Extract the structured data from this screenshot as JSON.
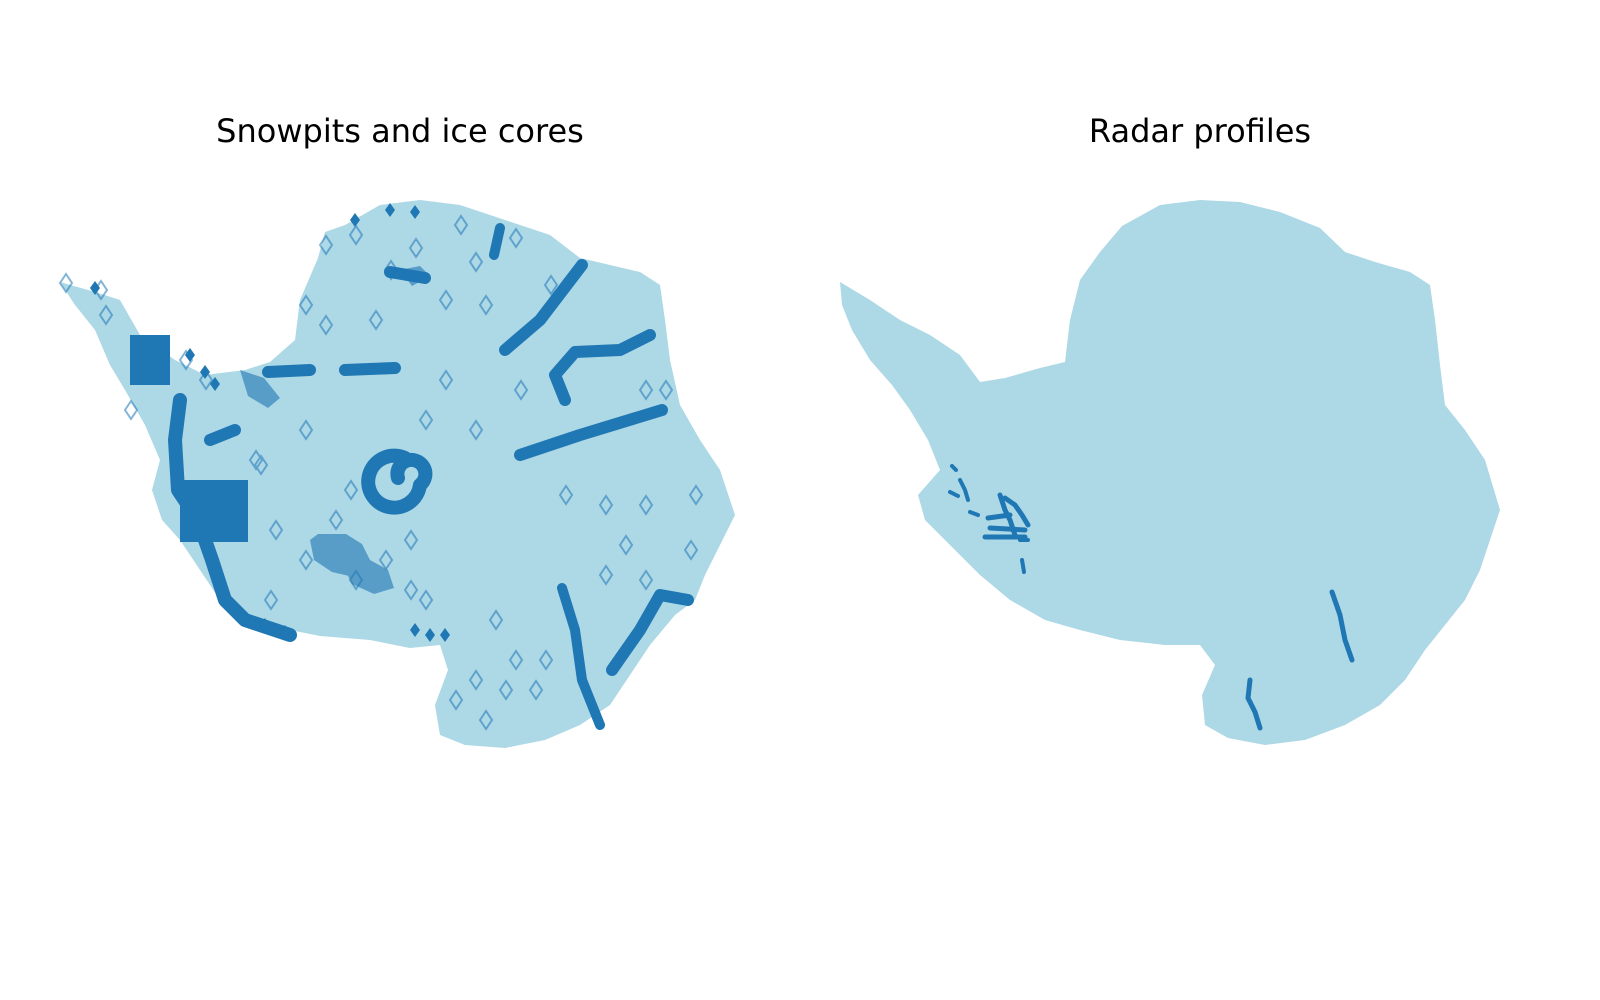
{
  "figure": {
    "panels": [
      {
        "title": "Snowpits and ice cores"
      },
      {
        "title": "Radar profiles"
      }
    ]
  },
  "colors": {
    "land": "#add8e6",
    "marker": "#1f77b4",
    "background": "#ffffff"
  },
  "legend": {
    "shown": false
  },
  "axes": {
    "shown": false
  }
}
